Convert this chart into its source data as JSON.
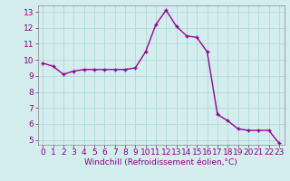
{
  "x": [
    0,
    1,
    2,
    3,
    4,
    5,
    6,
    7,
    8,
    9,
    10,
    11,
    12,
    13,
    14,
    15,
    16,
    17,
    18,
    19,
    20,
    21,
    22,
    23
  ],
  "y": [
    9.8,
    9.6,
    9.1,
    9.3,
    9.4,
    9.4,
    9.4,
    9.4,
    9.4,
    9.5,
    10.5,
    12.2,
    13.1,
    12.1,
    11.5,
    11.4,
    10.5,
    6.6,
    6.2,
    5.7,
    5.6,
    5.6,
    5.6,
    4.8
  ],
  "line_color": "#990099",
  "marker": "+",
  "marker_size": 3.5,
  "line_width": 1.0,
  "marker_edge_width": 1.0,
  "xlabel": "Windchill (Refroidissement éolien,°C)",
  "xlim_min": -0.5,
  "xlim_max": 23.5,
  "ylim_min": 4.7,
  "ylim_max": 13.4,
  "yticks": [
    5,
    6,
    7,
    8,
    9,
    10,
    11,
    12,
    13
  ],
  "xticks": [
    0,
    1,
    2,
    3,
    4,
    5,
    6,
    7,
    8,
    9,
    10,
    11,
    12,
    13,
    14,
    15,
    16,
    17,
    18,
    19,
    20,
    21,
    22,
    23
  ],
  "bg_color": "#d4eeee",
  "grid_color": "#b0d8d8",
  "line_color_spine": "#888888",
  "tick_label_color": "#880088",
  "xlabel_color": "#880088",
  "xlabel_fontsize": 6.5,
  "tick_fontsize": 6.5
}
